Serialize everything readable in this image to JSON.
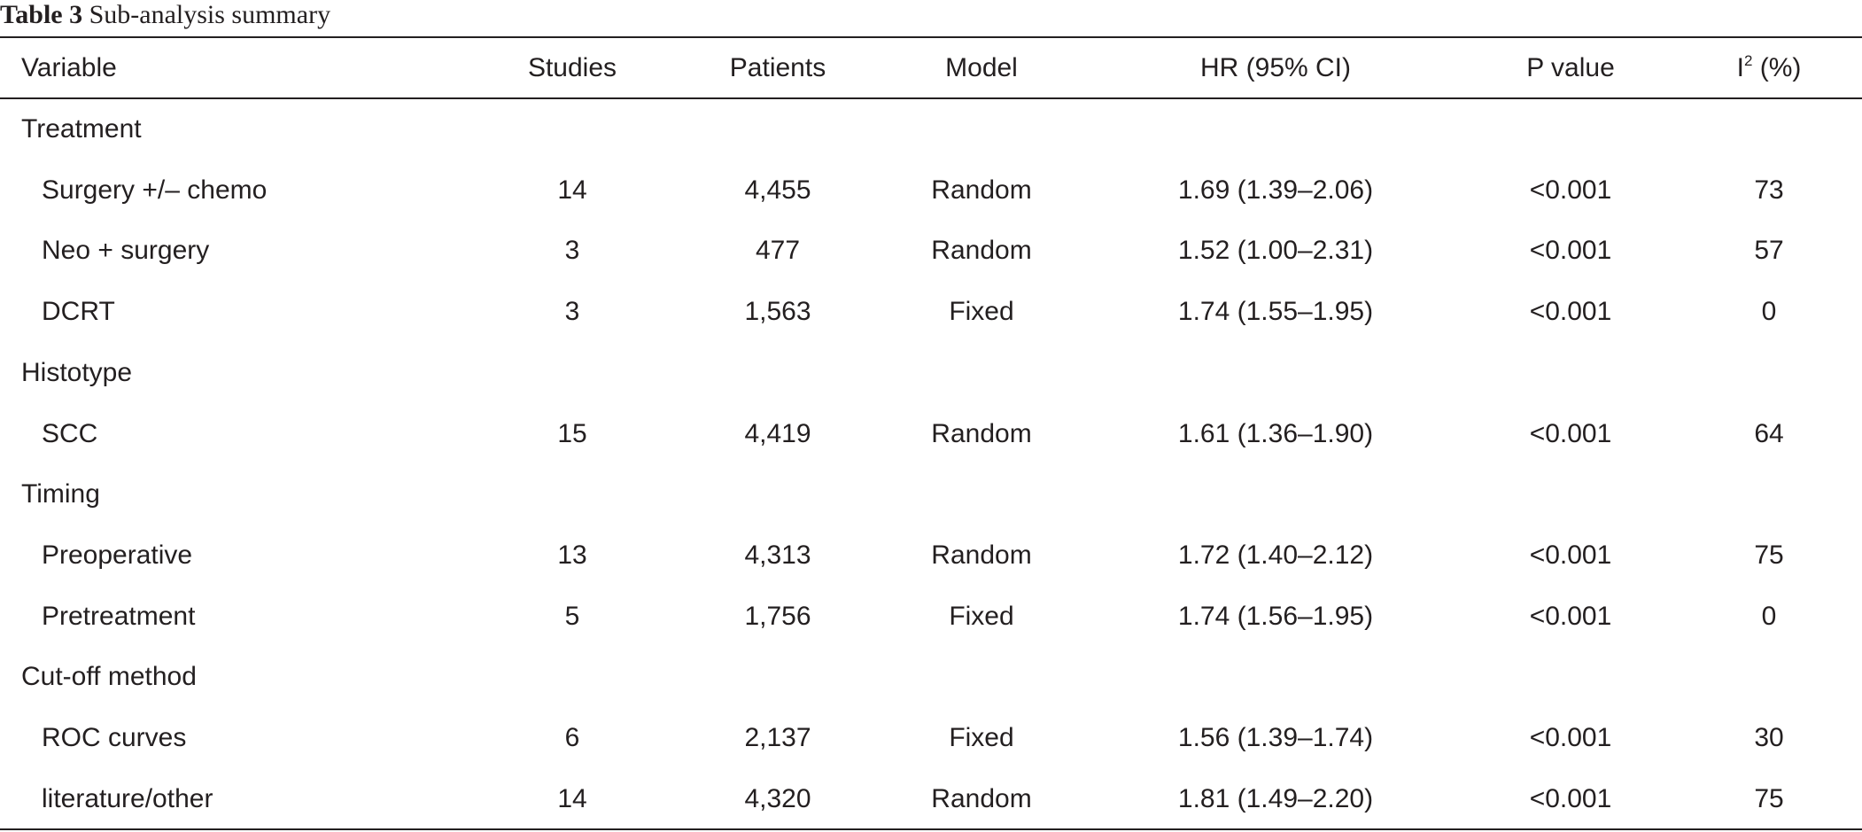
{
  "caption": {
    "label": "Table 3",
    "title": "Sub-analysis summary"
  },
  "header": {
    "variable": "Variable",
    "studies": "Studies",
    "patients": "Patients",
    "model": "Model",
    "hr": "HR (95% CI)",
    "p_value": "P value",
    "i2_base": "I",
    "i2_sup": "2",
    "i2_unit": " (%)"
  },
  "rows": [
    {
      "variable": "Treatment"
    },
    {
      "variable": "Surgery +/– chemo",
      "studies": "14",
      "patients": "4,455",
      "model": "Random",
      "hr": "1.69 (1.39–2.06)",
      "p": "<0.001",
      "i2": "73"
    },
    {
      "variable": "Neo + surgery",
      "studies": "3",
      "patients": "477",
      "model": "Random",
      "hr": "1.52 (1.00–2.31)",
      "p": "<0.001",
      "i2": "57"
    },
    {
      "variable": "DCRT",
      "studies": "3",
      "patients": "1,563",
      "model": "Fixed",
      "hr": "1.74 (1.55–1.95)",
      "p": "<0.001",
      "i2": "0"
    },
    {
      "variable": "Histotype"
    },
    {
      "variable": "SCC",
      "studies": "15",
      "patients": "4,419",
      "model": "Random",
      "hr": "1.61 (1.36–1.90)",
      "p": "<0.001",
      "i2": "64"
    },
    {
      "variable": "Timing"
    },
    {
      "variable": "Preoperative",
      "studies": "13",
      "patients": "4,313",
      "model": "Random",
      "hr": "1.72 (1.40–2.12)",
      "p": "<0.001",
      "i2": "75"
    },
    {
      "variable": "Pretreatment",
      "studies": "5",
      "patients": "1,756",
      "model": "Fixed",
      "hr": "1.74 (1.56–1.95)",
      "p": "<0.001",
      "i2": "0"
    },
    {
      "variable": "Cut-off method"
    },
    {
      "variable": "ROC curves",
      "studies": "6",
      "patients": "2,137",
      "model": "Fixed",
      "hr": "1.56 (1.39–1.74)",
      "p": "<0.001",
      "i2": "30"
    },
    {
      "variable": "literature/other",
      "studies": "14",
      "patients": "4,320",
      "model": "Random",
      "hr": "1.81 (1.49–2.20)",
      "p": "<0.001",
      "i2": "75"
    }
  ]
}
